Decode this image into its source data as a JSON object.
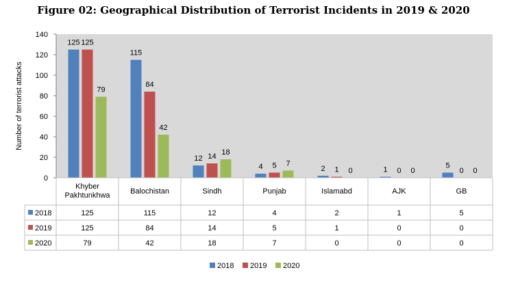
{
  "chart_data": {
    "type": "bar",
    "title": "Figure 02: Geographical Distribution of Terrorist Incidents in 2019 & 2020",
    "ylabel": "Number of terrorist attacks",
    "ylim": [
      0,
      140
    ],
    "yticks": [
      0,
      20,
      40,
      60,
      80,
      100,
      120,
      140
    ],
    "grid": false,
    "legend_position": "bottom",
    "categories": [
      [
        "Khyber",
        "Pakhtunkhwa"
      ],
      [
        "Balochistan"
      ],
      [
        "Sindh"
      ],
      [
        "Punjab"
      ],
      [
        "Islamabd"
      ],
      [
        "AJK"
      ],
      [
        "GB"
      ]
    ],
    "series": [
      {
        "name": "2018",
        "color": "#4f81bd",
        "values": [
          125,
          115,
          12,
          4,
          2,
          1,
          5
        ]
      },
      {
        "name": "2019",
        "color": "#c0504d",
        "values": [
          125,
          84,
          14,
          5,
          1,
          0,
          0
        ]
      },
      {
        "name": "2020",
        "color": "#9bbb59",
        "values": [
          79,
          42,
          18,
          7,
          0,
          0,
          0
        ]
      }
    ],
    "plot_background": "#d9d9d9"
  }
}
